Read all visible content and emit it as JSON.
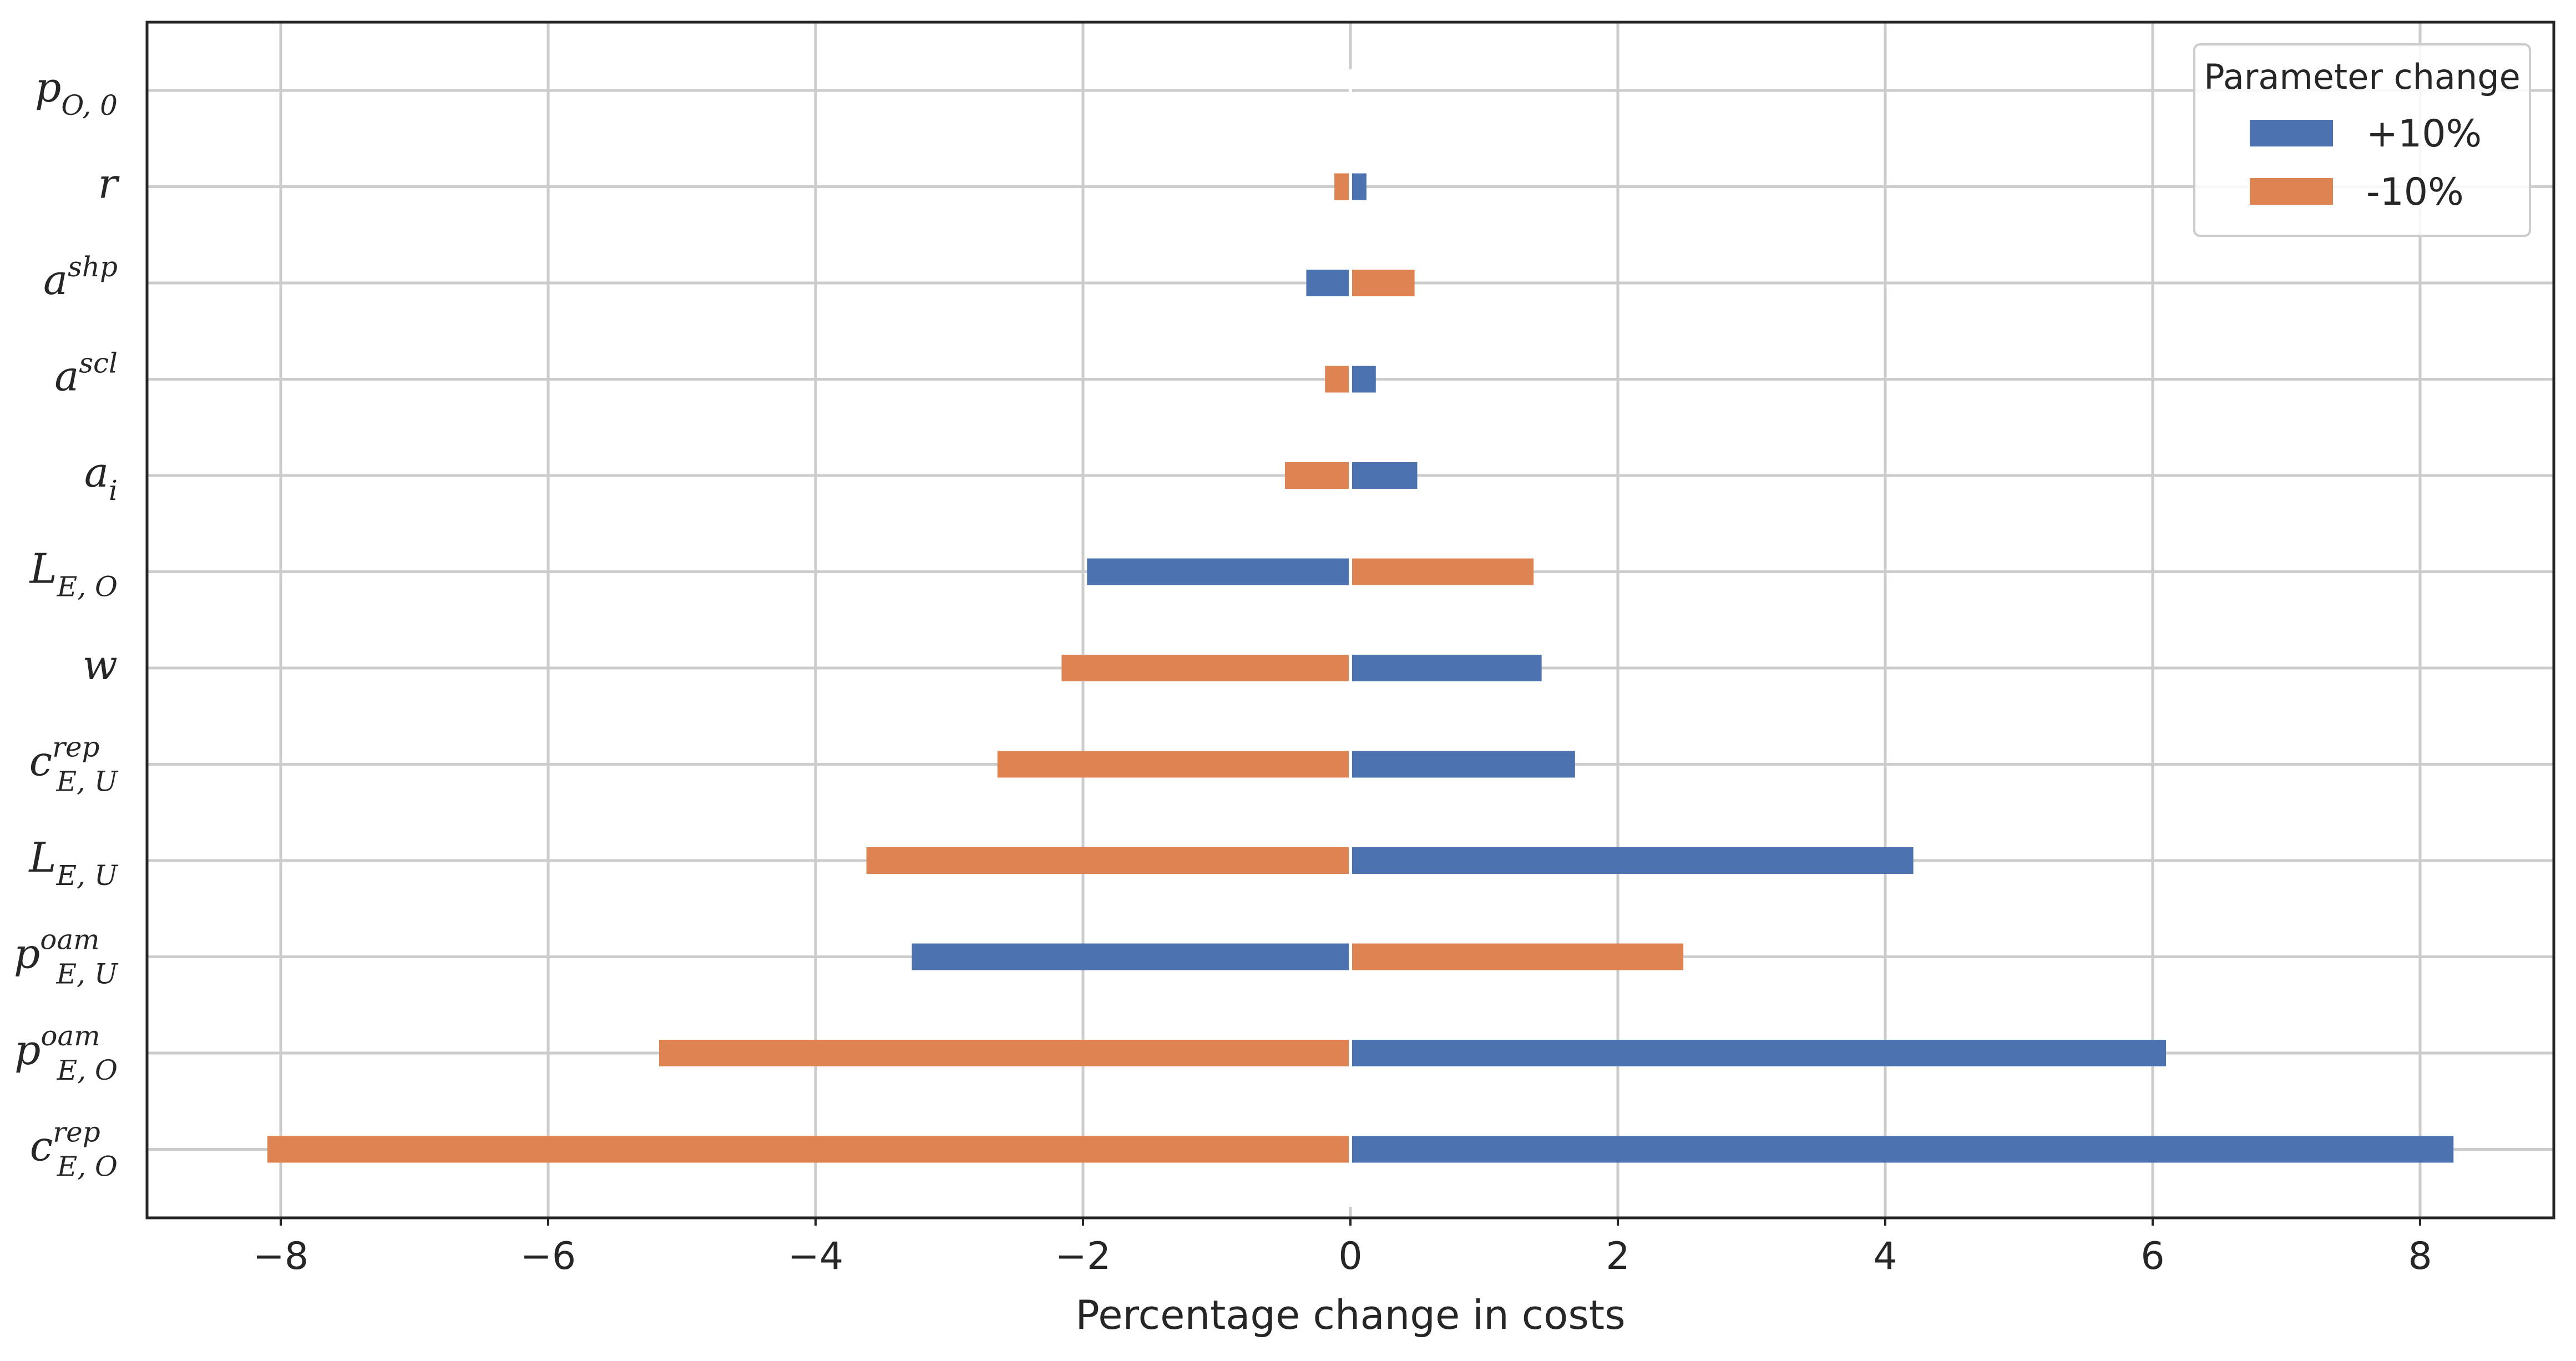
{
  "chart_data": {
    "type": "bar",
    "orientation": "horizontal",
    "xlabel": "Percentage change in costs",
    "ylabel": "",
    "xlim": [
      -9,
      9
    ],
    "xticks": [
      -8,
      -6,
      -4,
      -2,
      0,
      2,
      4,
      6,
      8
    ],
    "xtick_labels": [
      "−8",
      "−6",
      "−4",
      "−2",
      "0",
      "2",
      "4",
      "6",
      "8"
    ],
    "grid": true,
    "legend": {
      "title": "Parameter change",
      "position": "top-right"
    },
    "categories": [
      {
        "base": "p",
        "sub": "O, 0",
        "sup": ""
      },
      {
        "base": "r",
        "sub": "",
        "sup": ""
      },
      {
        "base": "a",
        "sub": "",
        "sup": "shp"
      },
      {
        "base": "a",
        "sub": "",
        "sup": "scl"
      },
      {
        "base": "a",
        "sub": "i",
        "sup": ""
      },
      {
        "base": "L",
        "sub": "E, O",
        "sup": ""
      },
      {
        "base": "w",
        "sub": "",
        "sup": ""
      },
      {
        "base": "c",
        "sub": "E, U",
        "sup": "rep"
      },
      {
        "base": "L",
        "sub": "E, U",
        "sup": ""
      },
      {
        "base": "p",
        "sub": "E, U",
        "sup": "oam"
      },
      {
        "base": "p",
        "sub": "E, O",
        "sup": "oam"
      },
      {
        "base": "c",
        "sub": "E, O",
        "sup": "rep"
      }
    ],
    "series": [
      {
        "name": "+10%",
        "color": "#4c72b0",
        "values": [
          0.01,
          0.12,
          -0.33,
          0.19,
          0.5,
          -1.97,
          1.43,
          1.68,
          4.21,
          -3.28,
          6.1,
          8.25
        ]
      },
      {
        "name": "-10%",
        "color": "#dd8452",
        "values": [
          -0.01,
          -0.12,
          0.48,
          -0.19,
          -0.49,
          1.37,
          -2.16,
          -2.64,
          -3.62,
          2.49,
          -5.17,
          -8.1
        ]
      }
    ]
  }
}
